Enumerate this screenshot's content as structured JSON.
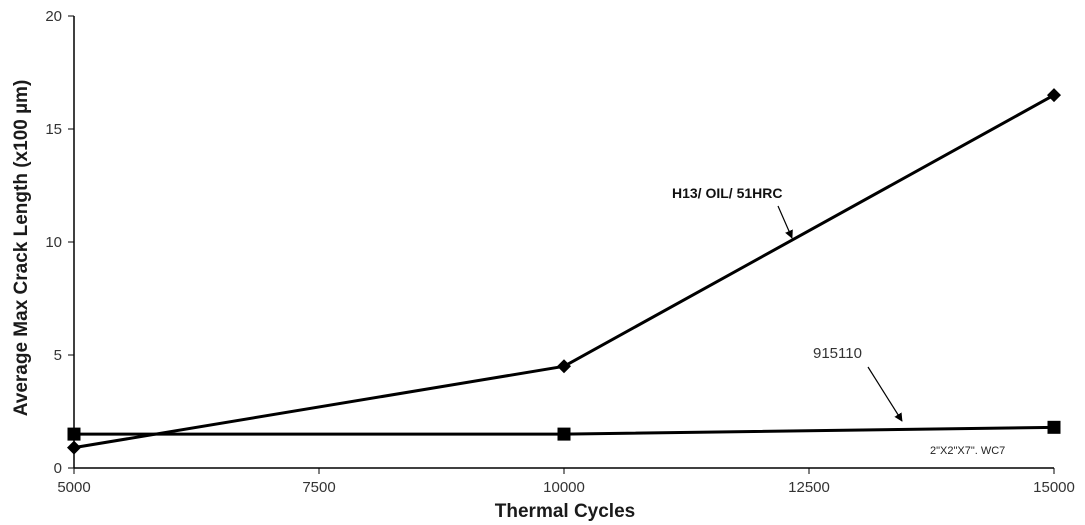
{
  "chart_data": {
    "type": "line",
    "title": "",
    "xlabel": "Thermal Cycles",
    "ylabel": "Average Max Crack Length  (x100 µm)",
    "xlim": [
      5000,
      15000
    ],
    "ylim": [
      0,
      20
    ],
    "x_ticks": [
      "5000",
      "7500",
      "10000",
      "12500",
      "15000"
    ],
    "x_tick_values": [
      5000,
      7500,
      10000,
      12500,
      15000
    ],
    "y_ticks": [
      "0",
      "5",
      "10",
      "15",
      "20"
    ],
    "y_tick_values": [
      0,
      5,
      10,
      15,
      20
    ],
    "grid": false,
    "legend": "none",
    "series": [
      {
        "marker": "diamond",
        "color": "#000000",
        "x": [
          5000,
          10000,
          15000
        ],
        "y": [
          0.9,
          4.5,
          16.5
        ]
      },
      {
        "marker": "square",
        "color": "#000000",
        "x": [
          5000,
          10000,
          15000
        ],
        "y": [
          1.5,
          1.5,
          1.8
        ]
      }
    ],
    "annotations": [
      {
        "text": "H13/ OIL/ 51HRC"
      },
      {
        "text": "915110"
      },
      {
        "text": "2\"X2\"X7\". WC7"
      }
    ]
  }
}
